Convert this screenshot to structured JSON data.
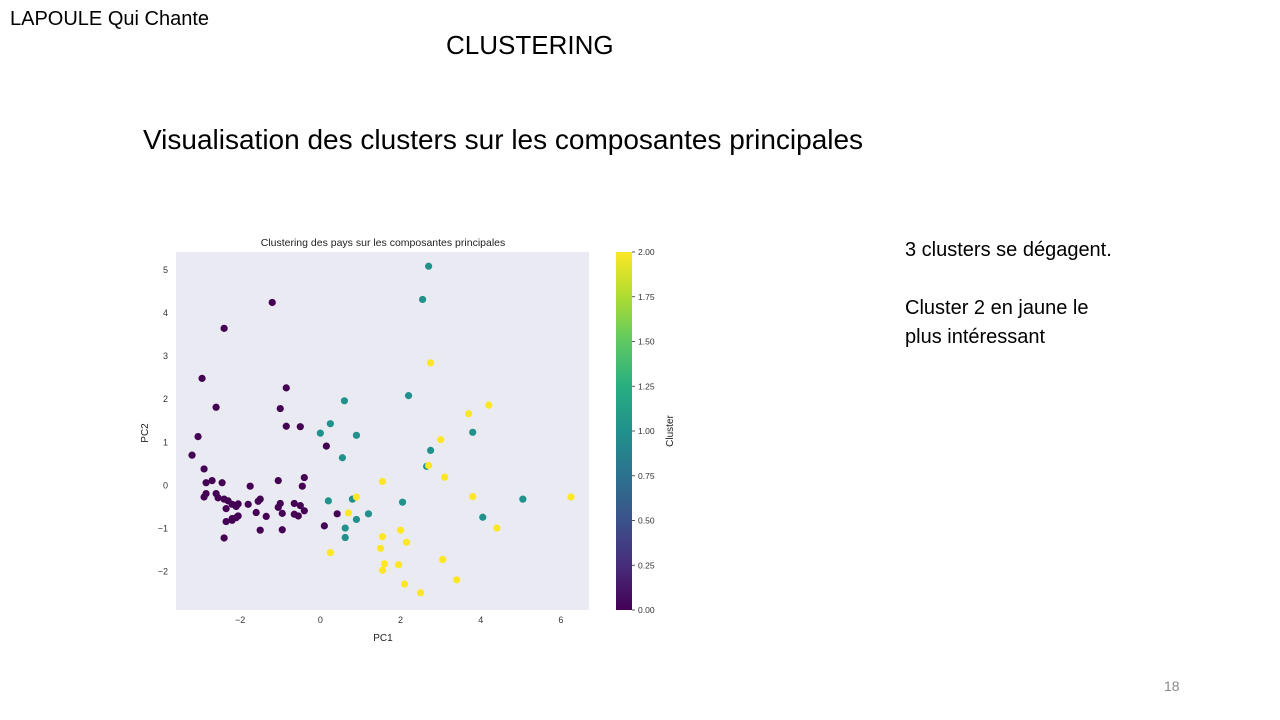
{
  "slide": {
    "brand": "LAPOULE Qui Chante",
    "title": "CLUSTERING",
    "subtitle": "Visualisation des clusters sur les composantes principales",
    "notes": [
      "3 clusters se dégagent.",
      "Cluster 2 en jaune le plus intéressant"
    ],
    "page_number": "18"
  },
  "chart_data": {
    "type": "scatter",
    "title": "Clustering des pays sur les composantes principales",
    "xlabel": "PC1",
    "ylabel": "PC2",
    "xlim": [
      -3.6,
      6.7
    ],
    "ylim": [
      -2.9,
      5.4
    ],
    "xticks": [
      -2,
      0,
      2,
      4,
      6
    ],
    "xtick_labels": [
      "−2",
      "0",
      "2",
      "4",
      "6"
    ],
    "yticks": [
      -2,
      -1,
      0,
      1,
      2,
      3,
      4,
      5
    ],
    "ytick_labels": [
      "−2",
      "−1",
      "0",
      "1",
      "2",
      "3",
      "4",
      "5"
    ],
    "colorbar": {
      "label": "Cluster",
      "range": [
        0,
        2
      ],
      "ticks": [
        0,
        0.25,
        0.5,
        0.75,
        1.0,
        1.25,
        1.5,
        1.75,
        2.0
      ],
      "tick_labels": [
        "0.00",
        "0.25",
        "0.50",
        "0.75",
        "1.00",
        "1.25",
        "1.50",
        "1.75",
        "2.00"
      ],
      "colormap": "viridis"
    },
    "background": "#eaeaf2",
    "grid": false,
    "cluster_colors": [
      "#440154",
      "#21918c",
      "#fde725"
    ],
    "points": [
      {
        "x": -1.2,
        "y": 4.23,
        "c": 0
      },
      {
        "x": -2.4,
        "y": 3.63,
        "c": 0
      },
      {
        "x": -2.95,
        "y": 2.47,
        "c": 0
      },
      {
        "x": -0.85,
        "y": 2.25,
        "c": 0
      },
      {
        "x": -2.6,
        "y": 1.8,
        "c": 0
      },
      {
        "x": -1.0,
        "y": 1.77,
        "c": 0
      },
      {
        "x": -0.85,
        "y": 1.36,
        "c": 0
      },
      {
        "x": -0.5,
        "y": 1.35,
        "c": 0
      },
      {
        "x": -3.05,
        "y": 1.12,
        "c": 0
      },
      {
        "x": 0.15,
        "y": 0.9,
        "c": 0
      },
      {
        "x": -3.2,
        "y": 0.69,
        "c": 0
      },
      {
        "x": -2.9,
        "y": 0.37,
        "c": 0
      },
      {
        "x": -1.05,
        "y": 0.1,
        "c": 0
      },
      {
        "x": -0.4,
        "y": 0.17,
        "c": 0
      },
      {
        "x": -2.85,
        "y": 0.05,
        "c": 0
      },
      {
        "x": -2.7,
        "y": 0.1,
        "c": 0
      },
      {
        "x": -2.45,
        "y": 0.05,
        "c": 0
      },
      {
        "x": -1.75,
        "y": -0.03,
        "c": 0
      },
      {
        "x": -0.45,
        "y": -0.03,
        "c": 0
      },
      {
        "x": -2.85,
        "y": -0.2,
        "c": 0
      },
      {
        "x": -2.9,
        "y": -0.28,
        "c": 0
      },
      {
        "x": -2.6,
        "y": -0.2,
        "c": 0
      },
      {
        "x": -2.55,
        "y": -0.3,
        "c": 0
      },
      {
        "x": -2.4,
        "y": -0.33,
        "c": 0
      },
      {
        "x": -2.3,
        "y": -0.37,
        "c": 0
      },
      {
        "x": -2.2,
        "y": -0.45,
        "c": 0
      },
      {
        "x": -2.35,
        "y": -0.55,
        "c": 0
      },
      {
        "x": -2.1,
        "y": -0.5,
        "c": 0
      },
      {
        "x": -2.05,
        "y": -0.44,
        "c": 0
      },
      {
        "x": -1.55,
        "y": -0.38,
        "c": 0
      },
      {
        "x": -1.5,
        "y": -0.33,
        "c": 0
      },
      {
        "x": -1.8,
        "y": -0.45,
        "c": 0
      },
      {
        "x": -1.0,
        "y": -0.43,
        "c": 0
      },
      {
        "x": -1.05,
        "y": -0.52,
        "c": 0
      },
      {
        "x": -0.65,
        "y": -0.43,
        "c": 0
      },
      {
        "x": -0.5,
        "y": -0.48,
        "c": 0
      },
      {
        "x": -0.4,
        "y": -0.6,
        "c": 0
      },
      {
        "x": -0.55,
        "y": -0.72,
        "c": 0
      },
      {
        "x": -0.65,
        "y": -0.68,
        "c": 0
      },
      {
        "x": -0.95,
        "y": -0.66,
        "c": 0
      },
      {
        "x": -1.6,
        "y": -0.64,
        "c": 0
      },
      {
        "x": -1.35,
        "y": -0.73,
        "c": 0
      },
      {
        "x": -2.2,
        "y": -0.78,
        "c": 0
      },
      {
        "x": -2.1,
        "y": -0.76,
        "c": 0
      },
      {
        "x": -2.05,
        "y": -0.72,
        "c": 0
      },
      {
        "x": -2.35,
        "y": -0.85,
        "c": 0
      },
      {
        "x": -2.2,
        "y": -0.82,
        "c": 0
      },
      {
        "x": -1.5,
        "y": -1.05,
        "c": 0
      },
      {
        "x": -0.95,
        "y": -1.04,
        "c": 0
      },
      {
        "x": 0.1,
        "y": -0.95,
        "c": 0
      },
      {
        "x": 0.42,
        "y": -0.67,
        "c": 0
      },
      {
        "x": -2.4,
        "y": -1.23,
        "c": 0
      },
      {
        "x": 2.7,
        "y": 5.07,
        "c": 1
      },
      {
        "x": 2.55,
        "y": 4.3,
        "c": 1
      },
      {
        "x": 2.2,
        "y": 2.07,
        "c": 1
      },
      {
        "x": 0.6,
        "y": 1.95,
        "c": 1
      },
      {
        "x": 0.25,
        "y": 1.42,
        "c": 1
      },
      {
        "x": 0.0,
        "y": 1.2,
        "c": 1
      },
      {
        "x": 0.9,
        "y": 1.15,
        "c": 1
      },
      {
        "x": 3.8,
        "y": 1.22,
        "c": 1
      },
      {
        "x": 0.55,
        "y": 0.63,
        "c": 1
      },
      {
        "x": 2.75,
        "y": 0.8,
        "c": 1
      },
      {
        "x": 2.65,
        "y": 0.43,
        "c": 1
      },
      {
        "x": 0.2,
        "y": -0.37,
        "c": 1
      },
      {
        "x": 0.8,
        "y": -0.33,
        "c": 1
      },
      {
        "x": 2.05,
        "y": -0.4,
        "c": 1
      },
      {
        "x": 5.05,
        "y": -0.33,
        "c": 1
      },
      {
        "x": 0.9,
        "y": -0.8,
        "c": 1
      },
      {
        "x": 1.2,
        "y": -0.67,
        "c": 1
      },
      {
        "x": 4.05,
        "y": -0.75,
        "c": 1
      },
      {
        "x": 0.62,
        "y": -1.0,
        "c": 1
      },
      {
        "x": 0.62,
        "y": -1.22,
        "c": 1
      },
      {
        "x": 2.75,
        "y": 2.83,
        "c": 2
      },
      {
        "x": 4.2,
        "y": 1.85,
        "c": 2
      },
      {
        "x": 3.7,
        "y": 1.65,
        "c": 2
      },
      {
        "x": 3.0,
        "y": 1.05,
        "c": 2
      },
      {
        "x": 2.7,
        "y": 0.45,
        "c": 2
      },
      {
        "x": 3.1,
        "y": 0.18,
        "c": 2
      },
      {
        "x": 1.55,
        "y": 0.08,
        "c": 2
      },
      {
        "x": 0.9,
        "y": -0.28,
        "c": 2
      },
      {
        "x": 3.8,
        "y": -0.27,
        "c": 2
      },
      {
        "x": 6.25,
        "y": -0.28,
        "c": 2
      },
      {
        "x": 0.7,
        "y": -0.65,
        "c": 2
      },
      {
        "x": 4.4,
        "y": -1.0,
        "c": 2
      },
      {
        "x": 2.0,
        "y": -1.05,
        "c": 2
      },
      {
        "x": 1.55,
        "y": -1.2,
        "c": 2
      },
      {
        "x": 2.15,
        "y": -1.33,
        "c": 2
      },
      {
        "x": 1.5,
        "y": -1.47,
        "c": 2
      },
      {
        "x": 0.25,
        "y": -1.57,
        "c": 2
      },
      {
        "x": 3.05,
        "y": -1.73,
        "c": 2
      },
      {
        "x": 1.6,
        "y": -1.83,
        "c": 2
      },
      {
        "x": 1.95,
        "y": -1.85,
        "c": 2
      },
      {
        "x": 1.55,
        "y": -1.98,
        "c": 2
      },
      {
        "x": 3.4,
        "y": -2.2,
        "c": 2
      },
      {
        "x": 2.1,
        "y": -2.3,
        "c": 2
      },
      {
        "x": 2.5,
        "y": -2.5,
        "c": 2
      }
    ]
  }
}
